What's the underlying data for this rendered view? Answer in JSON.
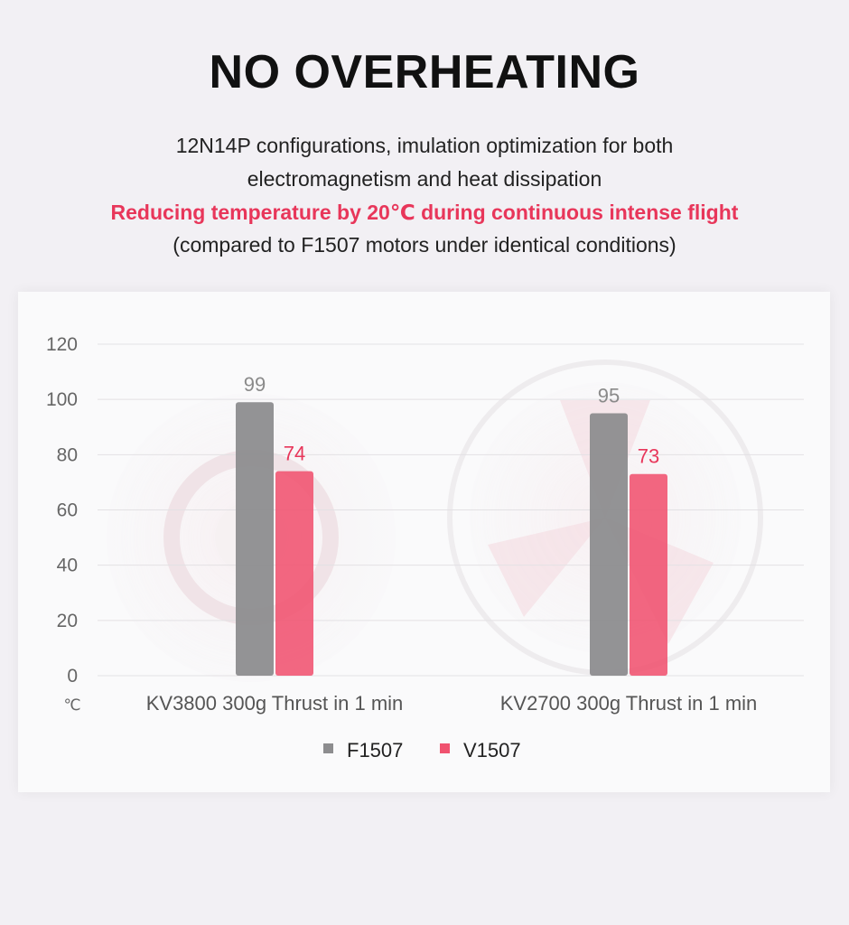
{
  "header": {
    "title": "NO OVERHEATING",
    "line1": "12N14P configurations, imulation optimization for both",
    "line2": "electromagnetism and heat dissipation",
    "highlight": "Reducing temperature by 20℃ during continuous intense flight",
    "note": "(compared to F1507 motors under identical conditions)"
  },
  "colors": {
    "accent": "#e8365a",
    "f1507": "#8d8d8f",
    "v1507": "#f0526f"
  },
  "chart_data": {
    "type": "bar",
    "title": "",
    "xlabel": "",
    "ylabel": "℃",
    "ylim": [
      0,
      120
    ],
    "yticks": [
      0,
      20,
      40,
      60,
      80,
      100,
      120
    ],
    "grid": true,
    "legend_position": "bottom",
    "categories": [
      "KV3800 300g Thrust in 1 min",
      "KV2700 300g Thrust in 1 min"
    ],
    "series": [
      {
        "name": "F1507",
        "values": [
          99,
          95
        ],
        "color": "#8d8d8f"
      },
      {
        "name": "V1507",
        "values": [
          74,
          73
        ],
        "color": "#f0526f"
      }
    ]
  }
}
